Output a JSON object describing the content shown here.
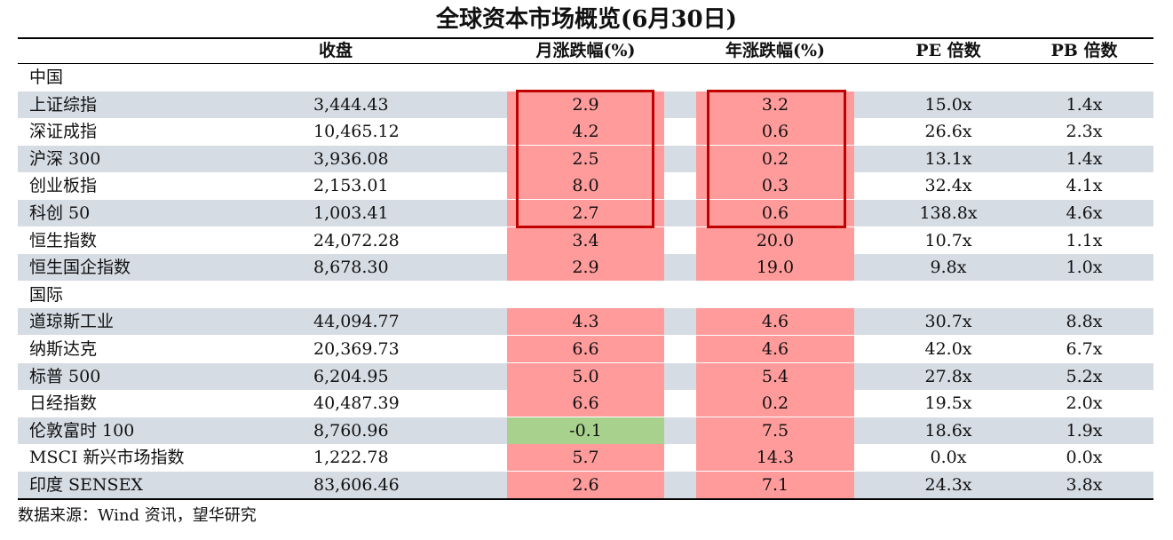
{
  "title": "全球资本市场概览(6月30日)",
  "headers": [
    "收盘",
    "月涨跌幅(%)",
    "年涨跌幅(%)",
    "PE 倍数",
    "PB 倍数"
  ],
  "colors": {
    "up": "#ff9b9b",
    "down": "#a9d18e",
    "stripe": "#d6dce4",
    "highlight_box": "#c00000"
  },
  "sections": [
    {
      "label": "中国",
      "rows": [
        {
          "name": "上证综指",
          "close": "3,444.43",
          "mon": "2.9",
          "yr": "3.2",
          "pe": "15.0x",
          "pb": "1.4x"
        },
        {
          "name": "深证成指",
          "close": "10,465.12",
          "mon": "4.2",
          "yr": "0.6",
          "pe": "26.6x",
          "pb": "2.3x"
        },
        {
          "name": "沪深 300",
          "close": "3,936.08",
          "mon": "2.5",
          "yr": "0.2",
          "pe": "13.1x",
          "pb": "1.4x"
        },
        {
          "name": "创业板指",
          "close": "2,153.01",
          "mon": "8.0",
          "yr": "0.3",
          "pe": "32.4x",
          "pb": "4.1x"
        },
        {
          "name": "科创 50",
          "close": "1,003.41",
          "mon": "2.7",
          "yr": "0.6",
          "pe": "138.8x",
          "pb": "4.6x"
        },
        {
          "name": "恒生指数",
          "close": "24,072.28",
          "mon": "3.4",
          "yr": "20.0",
          "pe": "10.7x",
          "pb": "1.1x"
        },
        {
          "name": "恒生国企指数",
          "close": "8,678.30",
          "mon": "2.9",
          "yr": "19.0",
          "pe": "9.8x",
          "pb": "1.0x"
        }
      ]
    },
    {
      "label": "国际",
      "rows": [
        {
          "name": "道琼斯工业",
          "close": "44,094.77",
          "mon": "4.3",
          "yr": "4.6",
          "pe": "30.7x",
          "pb": "8.8x"
        },
        {
          "name": "纳斯达克",
          "close": "20,369.73",
          "mon": "6.6",
          "yr": "4.6",
          "pe": "42.0x",
          "pb": "6.7x"
        },
        {
          "name": "标普 500",
          "close": "6,204.95",
          "mon": "5.0",
          "yr": "5.4",
          "pe": "27.8x",
          "pb": "5.2x"
        },
        {
          "name": "日经指数",
          "close": "40,487.39",
          "mon": "6.6",
          "yr": "0.2",
          "pe": "19.5x",
          "pb": "2.0x"
        },
        {
          "name": "伦敦富时 100",
          "close": "8,760.96",
          "mon": "-0.1",
          "yr": "7.5",
          "pe": "18.6x",
          "pb": "1.9x"
        },
        {
          "name": "MSCI 新兴市场指数",
          "close": "1,222.78",
          "mon": "5.7",
          "yr": "14.3",
          "pe": "0.0x",
          "pb": "0.0x"
        },
        {
          "name": "印度 SENSEX",
          "close": "83,606.46",
          "mon": "2.6",
          "yr": "7.1",
          "pe": "24.3x",
          "pb": "3.8x"
        }
      ]
    }
  ],
  "highlight_rows": 5,
  "source": "数据来源：Wind 资讯，望华研究"
}
